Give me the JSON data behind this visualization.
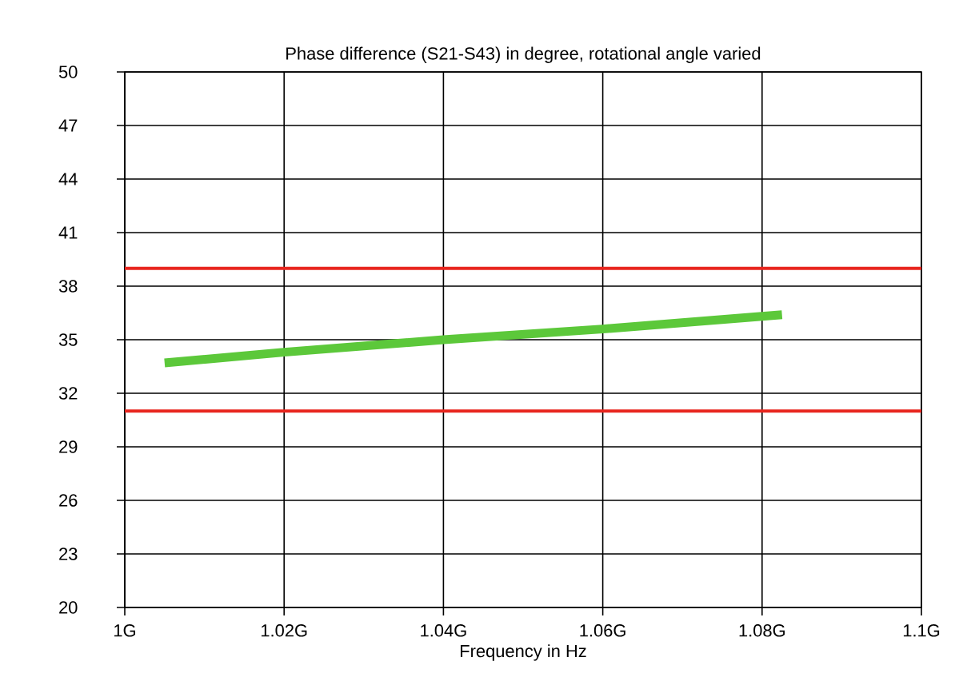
{
  "chart_data": {
    "type": "line",
    "title": "Phase difference (S21-S43) in degree, rotational angle varied",
    "xlabel": "Frequency in Hz",
    "series": [
      {
        "color": "#5cc83a",
        "x": [
          1.005,
          1.02,
          1.04,
          1.06,
          1.0825
        ],
        "values": [
          33.7,
          34.3,
          35.0,
          35.6,
          36.4
        ]
      }
    ],
    "xlim": [
      1,
      1.1
    ],
    "xticks": [
      {
        "value": 1,
        "label": "1G"
      },
      {
        "value": 1.02,
        "label": "1.02G"
      },
      {
        "value": 1.04,
        "label": "1.04G"
      },
      {
        "value": 1.06,
        "label": "1.06G"
      },
      {
        "value": 1.08,
        "label": "1.08G"
      },
      {
        "value": 1.1,
        "label": "1.1G"
      }
    ],
    "ylim": [
      20,
      50
    ],
    "yticks": [
      20,
      23,
      26,
      29,
      32,
      35,
      38,
      41,
      44,
      47,
      50
    ],
    "ref_lines": [
      {
        "axis": "y",
        "value": 39,
        "color": "#e8261f"
      },
      {
        "axis": "y",
        "value": 31,
        "color": "#e8261f"
      }
    ],
    "grid": true,
    "marker": "none",
    "line_style": "solid"
  }
}
